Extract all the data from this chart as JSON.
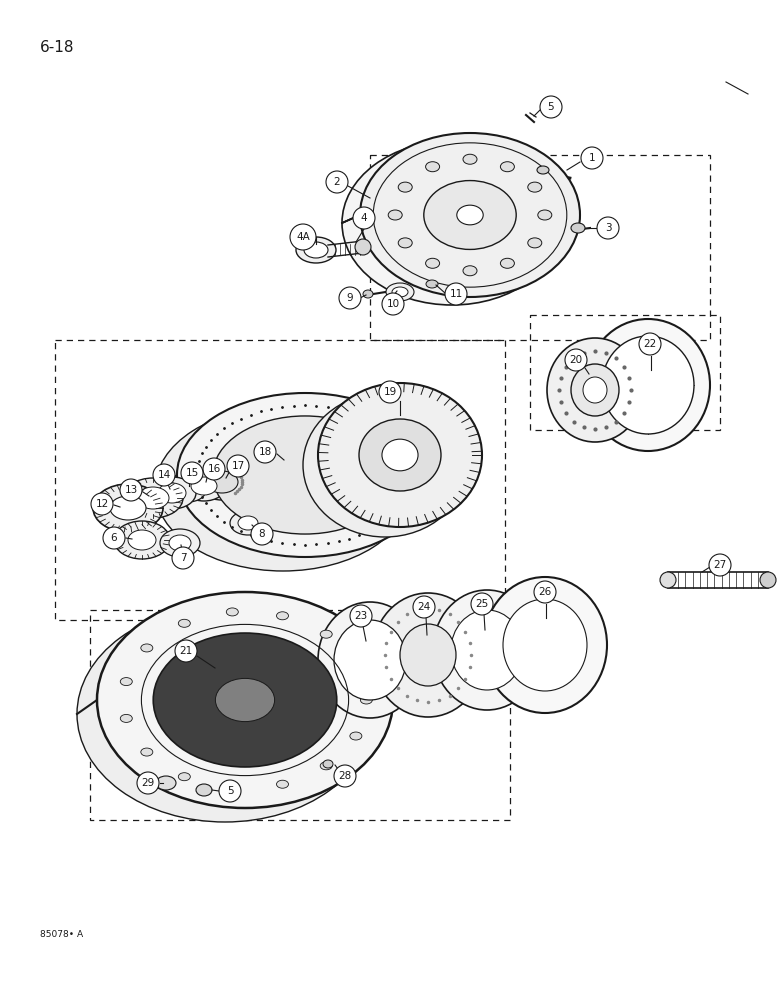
{
  "page_label": "6-18",
  "footer_label": "85078• A",
  "bg": "#ffffff",
  "lc": "#1a1a1a",
  "fig_width": 7.8,
  "fig_height": 10.0
}
